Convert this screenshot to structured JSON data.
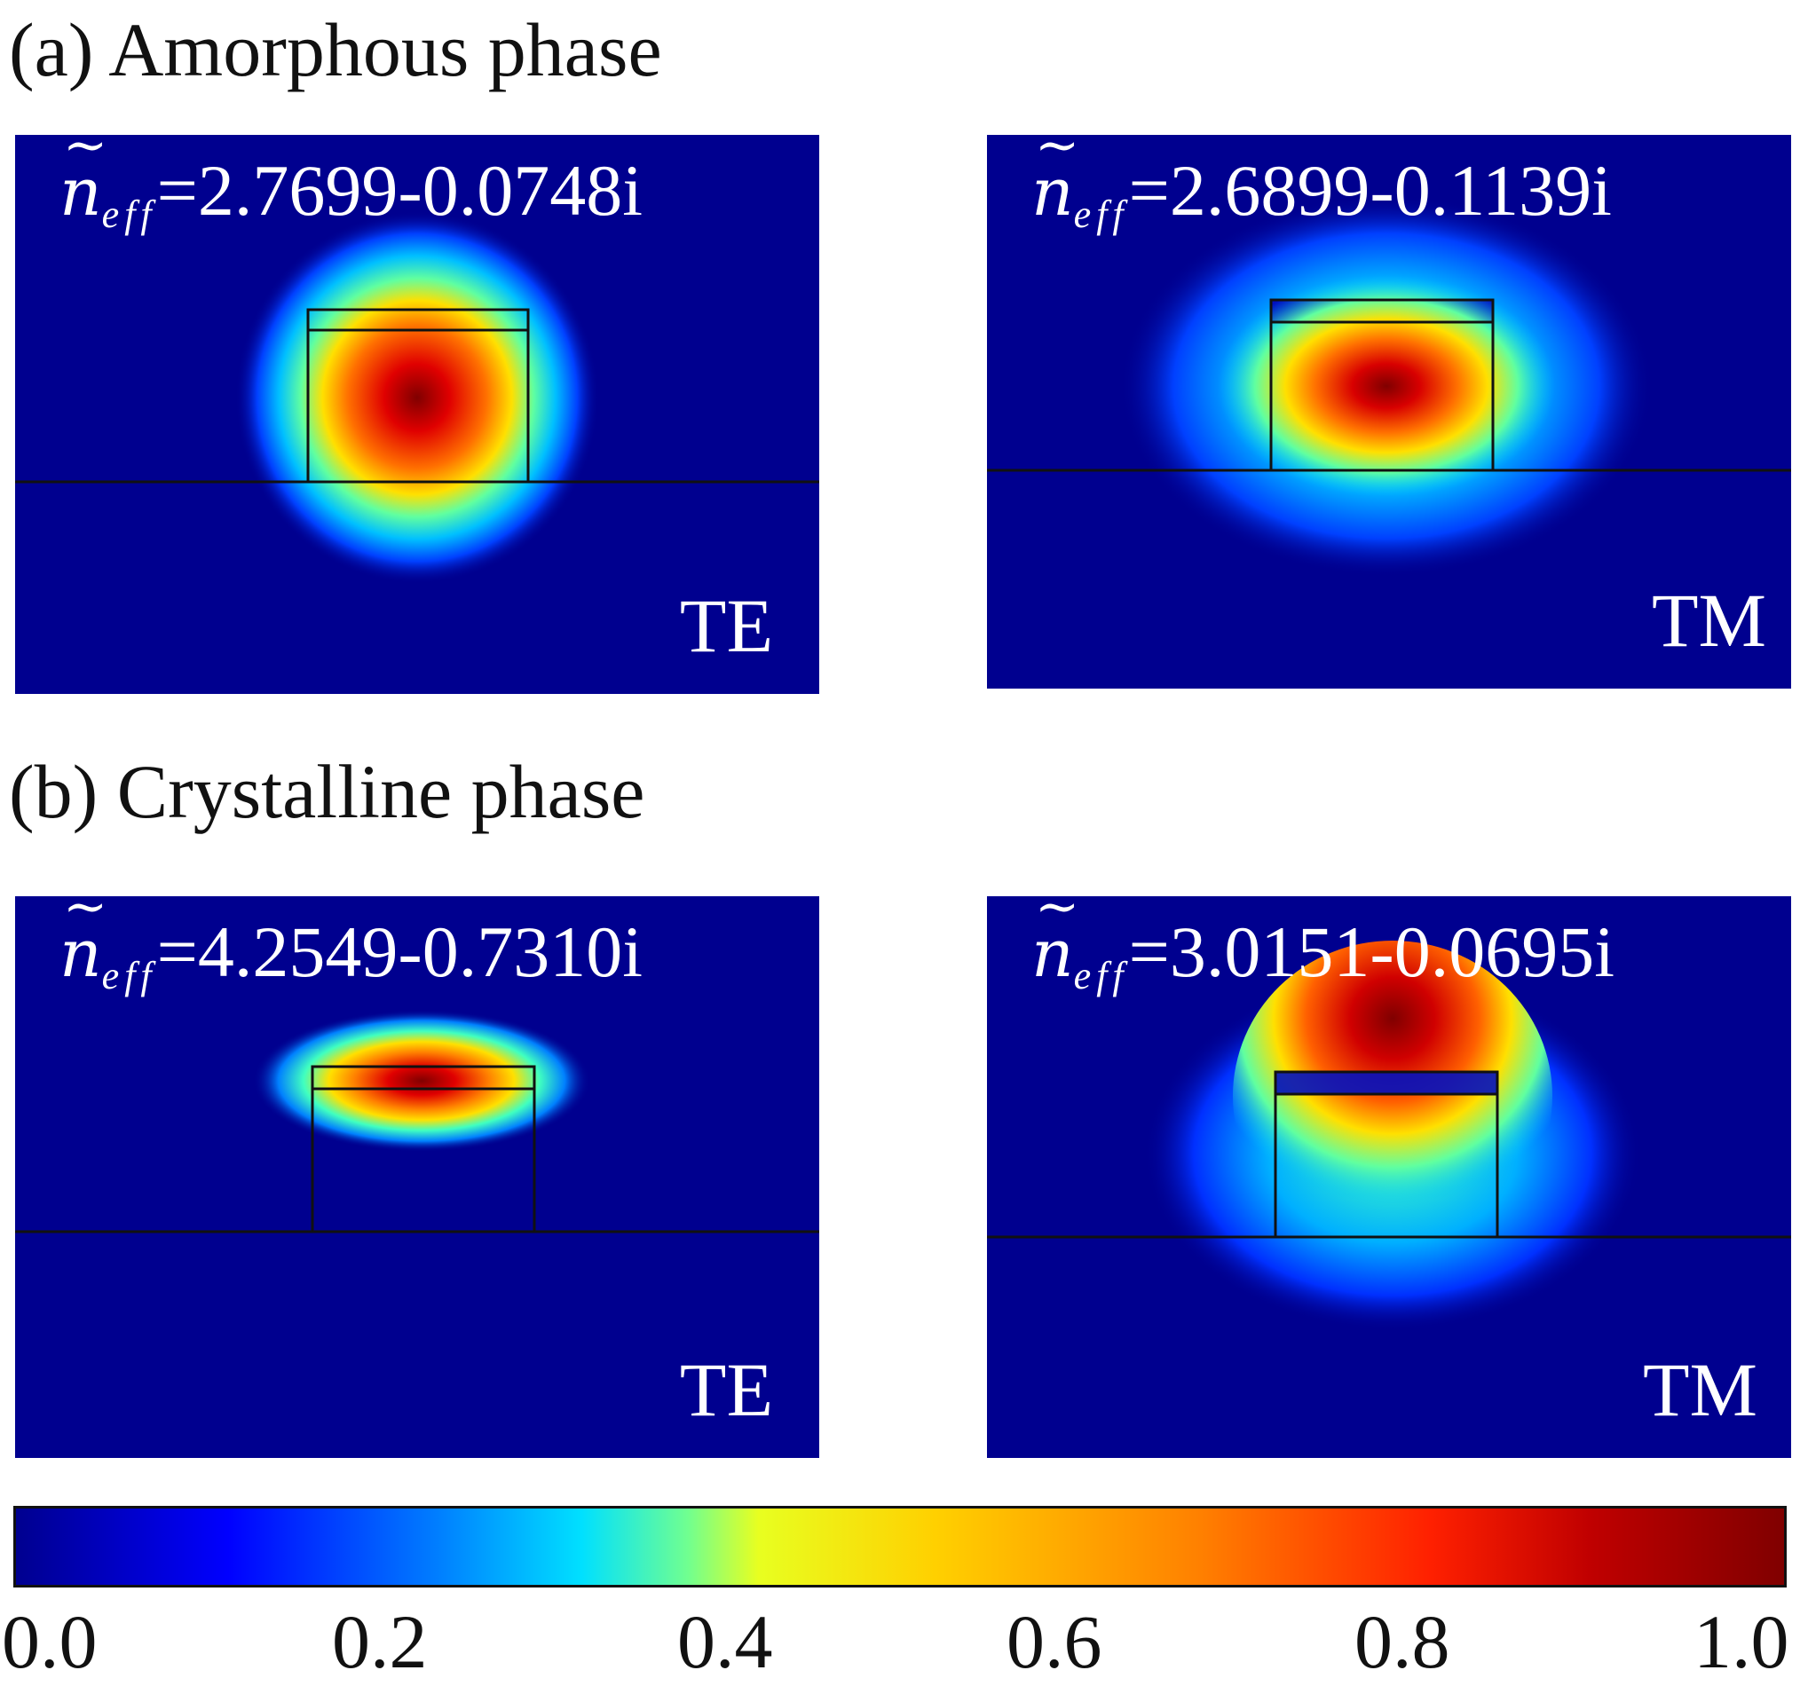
{
  "section_a": {
    "title": "(a) Amorphous phase"
  },
  "section_b": {
    "title": "(b) Crystalline phase"
  },
  "panels": {
    "a_te": {
      "neff_symbol": "n",
      "neff_subscript": "eff",
      "neff_value": "=2.7699-0.0748i",
      "mode": "TE"
    },
    "a_tm": {
      "neff_symbol": "n",
      "neff_subscript": "eff",
      "neff_value": "=2.6899-0.1139i",
      "mode": "TM"
    },
    "b_te": {
      "neff_symbol": "n",
      "neff_subscript": "eff",
      "neff_value": "=4.2549-0.7310i",
      "mode": "TE"
    },
    "b_tm": {
      "neff_symbol": "n",
      "neff_subscript": "eff",
      "neff_value": "=3.0151-0.0695i",
      "mode": "TM"
    }
  },
  "colorbar": {
    "ticks": [
      "0.0",
      "0.2",
      "0.4",
      "0.6",
      "0.8",
      "1.0"
    ],
    "range": [
      0.0,
      1.0
    ]
  },
  "colors": {
    "background_field": "#00008f",
    "max_field": "#800000",
    "text_on_field": "#ffffff"
  }
}
